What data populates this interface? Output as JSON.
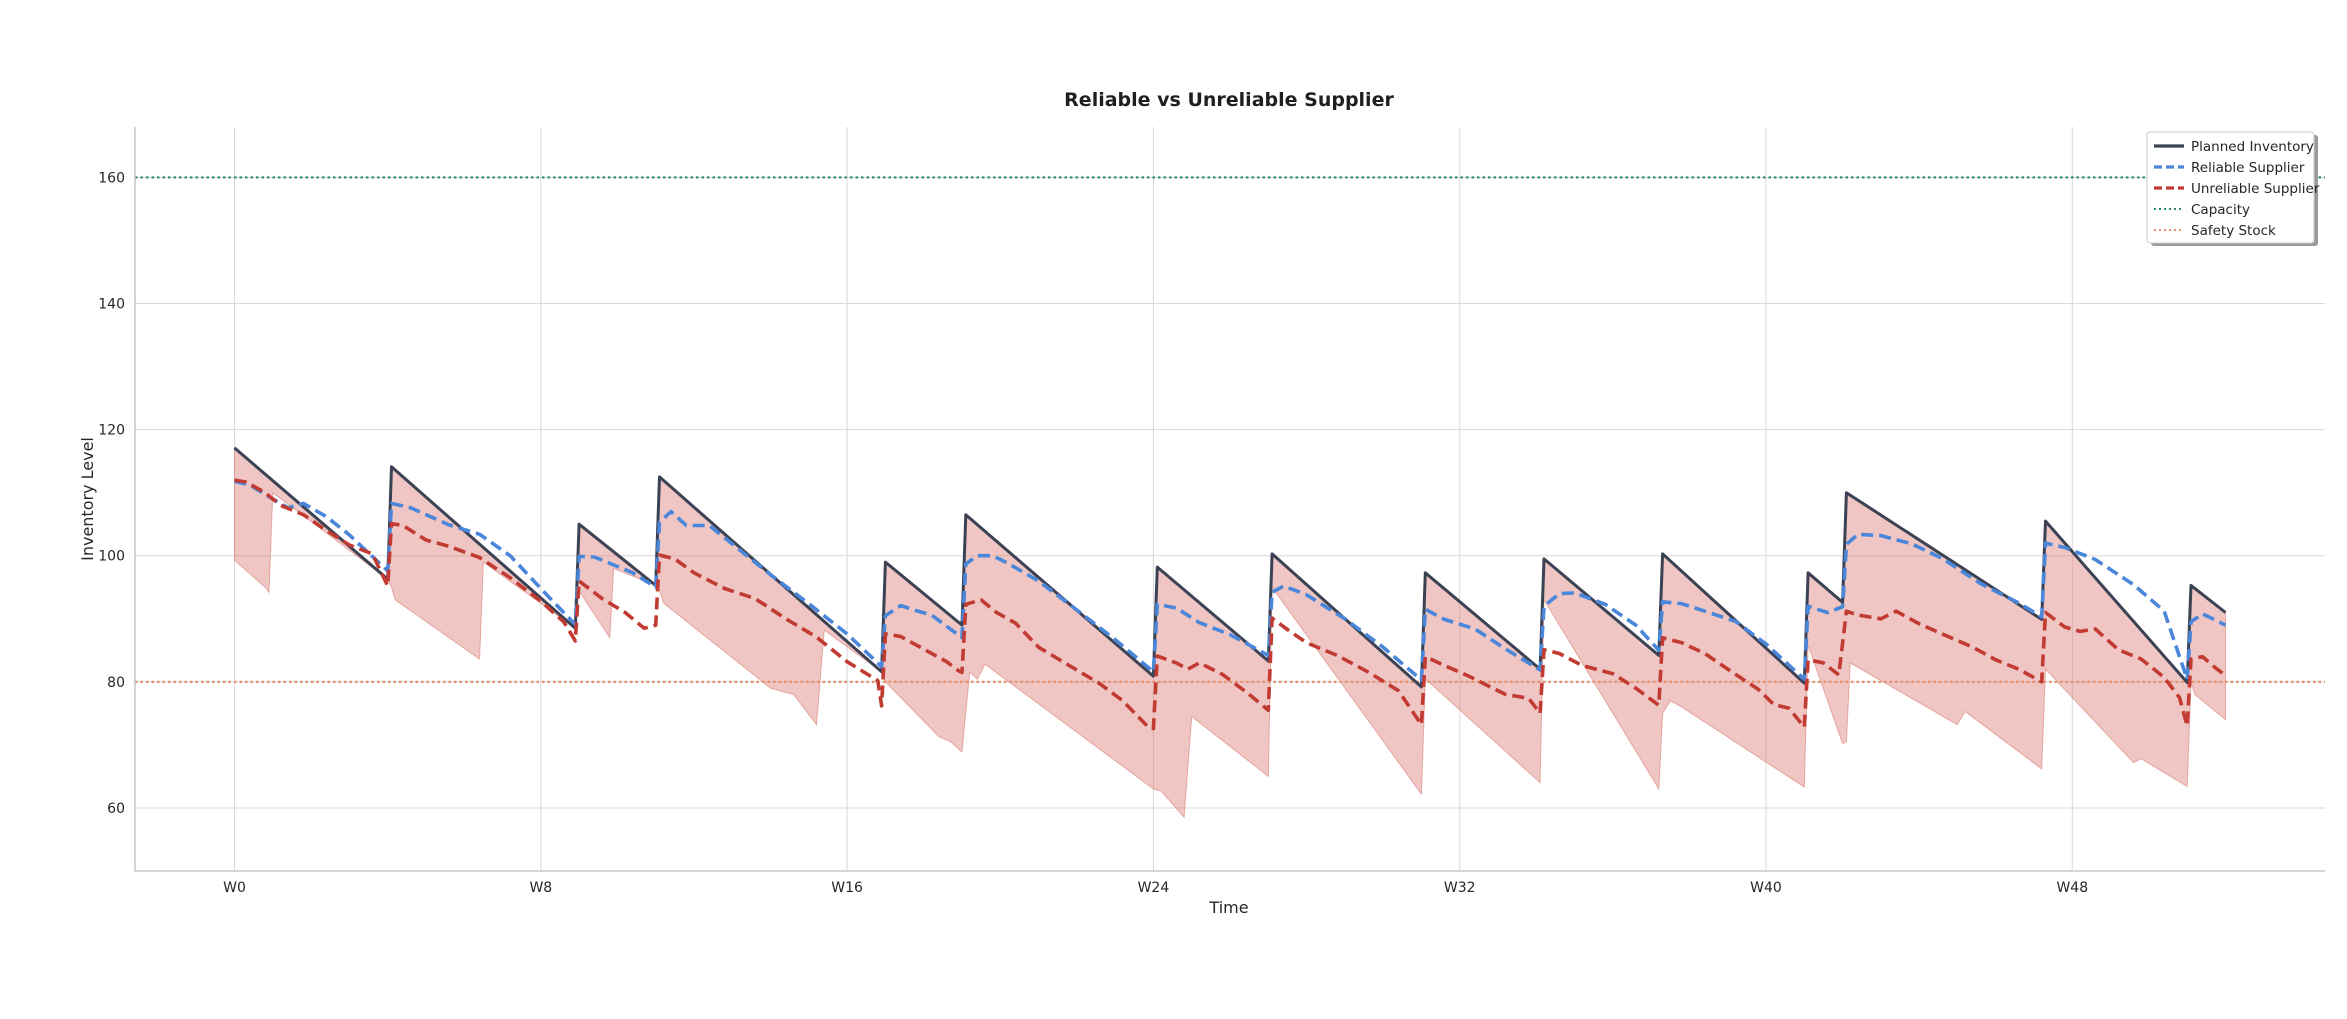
{
  "chart_data": {
    "type": "line",
    "title": "Reliable vs Unreliable Supplier",
    "xlabel": "Time",
    "ylabel": "Inventory Level",
    "xlim": [
      -1.3,
      27.3
    ],
    "ylim": [
      50,
      168
    ],
    "x_ticks": [
      {
        "x": 0,
        "label": "W0"
      },
      {
        "x": 4,
        "label": "W8"
      },
      {
        "x": 8,
        "label": "W16"
      },
      {
        "x": 12,
        "label": "W24"
      },
      {
        "x": 16,
        "label": "W32"
      },
      {
        "x": 20,
        "label": "W40"
      },
      {
        "x": 24,
        "label": "W48"
      }
    ],
    "y_ticks": [
      60,
      80,
      100,
      120,
      140,
      160
    ],
    "grid": true,
    "legend_position": "top-right",
    "reference_lines": [
      {
        "name": "Capacity",
        "value": 160,
        "color": "#2e8b6e",
        "style": "dotted"
      },
      {
        "name": "Safety Stock",
        "value": 80,
        "color": "#e8906a",
        "style": "dotted"
      }
    ],
    "series": [
      {
        "name": "Planned Inventory",
        "color": "#3b4254",
        "style": "solid",
        "points": [
          [
            0,
            117.1
          ],
          [
            2,
            96.3
          ],
          [
            2.05,
            114.1
          ],
          [
            4.45,
            88.5
          ],
          [
            4.5,
            105.0
          ],
          [
            5.5,
            95.3
          ],
          [
            5.55,
            112.5
          ],
          [
            8.45,
            81.6
          ],
          [
            8.5,
            99.0
          ],
          [
            9.5,
            89.0
          ],
          [
            9.55,
            106.5
          ],
          [
            12,
            80.9
          ],
          [
            12.05,
            98.2
          ],
          [
            13.5,
            83.3
          ],
          [
            13.55,
            100.3
          ],
          [
            15.5,
            79.2
          ],
          [
            15.55,
            97.3
          ],
          [
            17.05,
            82.0
          ],
          [
            17.1,
            99.5
          ],
          [
            18.6,
            84.2
          ],
          [
            18.65,
            100.3
          ],
          [
            20.5,
            79.8
          ],
          [
            20.55,
            97.3
          ],
          [
            21,
            92.6
          ],
          [
            21.05,
            110.0
          ],
          [
            23.6,
            89.9
          ],
          [
            23.65,
            105.5
          ],
          [
            25.5,
            79.9
          ],
          [
            25.55,
            95.3
          ],
          [
            26,
            91.0
          ]
        ]
      },
      {
        "name": "Reliable Supplier",
        "color": "#4a86d9",
        "style": "dashed",
        "points": [
          [
            0,
            111.8
          ],
          [
            0.2,
            111.2
          ],
          [
            0.5,
            109.0
          ],
          [
            0.7,
            107.6
          ],
          [
            0.9,
            108.3
          ],
          [
            1.2,
            106.2
          ],
          [
            1.5,
            103.3
          ],
          [
            2,
            97.6
          ],
          [
            2.05,
            108.3
          ],
          [
            2.3,
            107.6
          ],
          [
            2.8,
            104.9
          ],
          [
            3.2,
            103.4
          ],
          [
            3.6,
            100.0
          ],
          [
            4.1,
            93.5
          ],
          [
            4.45,
            89.1
          ],
          [
            4.5,
            99.9
          ],
          [
            4.7,
            99.8
          ],
          [
            5.2,
            97.3
          ],
          [
            5.5,
            95.0
          ],
          [
            5.55,
            105.3
          ],
          [
            5.7,
            107.0
          ],
          [
            5.9,
            104.8
          ],
          [
            6.2,
            104.8
          ],
          [
            6.6,
            100.9
          ],
          [
            7,
            97.0
          ],
          [
            7.5,
            92.4
          ],
          [
            8,
            87.6
          ],
          [
            8.45,
            82.4
          ],
          [
            8.5,
            90.5
          ],
          [
            8.7,
            92.1
          ],
          [
            8.9,
            91.3
          ],
          [
            9.1,
            90.6
          ],
          [
            9.5,
            87.0
          ],
          [
            9.55,
            98.7
          ],
          [
            9.7,
            100.0
          ],
          [
            9.9,
            100.0
          ],
          [
            10.1,
            98.8
          ],
          [
            10.5,
            96.0
          ],
          [
            11,
            91.4
          ],
          [
            11.5,
            86.7
          ],
          [
            12,
            81.6
          ],
          [
            12.05,
            92.3
          ],
          [
            12.3,
            91.7
          ],
          [
            12.6,
            89.4
          ],
          [
            13,
            87.5
          ],
          [
            13.5,
            84.2
          ],
          [
            13.55,
            94.2
          ],
          [
            13.7,
            95.2
          ],
          [
            14,
            93.8
          ],
          [
            14.5,
            90.0
          ],
          [
            15,
            85.5
          ],
          [
            15.5,
            80.3
          ],
          [
            15.55,
            91.5
          ],
          [
            15.8,
            89.9
          ],
          [
            16.2,
            88.4
          ],
          [
            16.6,
            85.2
          ],
          [
            17.05,
            81.9
          ],
          [
            17.1,
            92.0
          ],
          [
            17.3,
            94.0
          ],
          [
            17.5,
            94.1
          ],
          [
            17.9,
            92.3
          ],
          [
            18.3,
            89.0
          ],
          [
            18.6,
            85.0
          ],
          [
            18.65,
            92.7
          ],
          [
            18.9,
            92.4
          ],
          [
            19.2,
            91.2
          ],
          [
            19.6,
            89.6
          ],
          [
            20,
            86.0
          ],
          [
            20.5,
            80.4
          ],
          [
            20.55,
            92.0
          ],
          [
            20.8,
            91.0
          ],
          [
            21,
            91.9
          ],
          [
            21.05,
            101.8
          ],
          [
            21.2,
            103.4
          ],
          [
            21.5,
            103.2
          ],
          [
            21.9,
            101.9
          ],
          [
            22.3,
            99.6
          ],
          [
            22.8,
            95.6
          ],
          [
            23.3,
            92.5
          ],
          [
            23.6,
            90.3
          ],
          [
            23.65,
            102.0
          ],
          [
            23.9,
            101.3
          ],
          [
            24.3,
            99.4
          ],
          [
            24.8,
            95.4
          ],
          [
            25.2,
            91.2
          ],
          [
            25.5,
            80.4
          ],
          [
            25.55,
            89.5
          ],
          [
            25.7,
            90.8
          ],
          [
            26,
            89.0
          ]
        ]
      },
      {
        "name": "Unreliable Supplier",
        "color": "#c23b33",
        "style": "dashed",
        "points": [
          [
            0,
            112.0
          ],
          [
            0.15,
            111.7
          ],
          [
            0.4,
            110.0
          ],
          [
            0.6,
            108.0
          ],
          [
            0.9,
            106.5
          ],
          [
            1.2,
            104.0
          ],
          [
            1.5,
            101.7
          ],
          [
            1.8,
            100.3
          ],
          [
            2,
            95.2
          ],
          [
            2.05,
            105.1
          ],
          [
            2.2,
            104.8
          ],
          [
            2.5,
            102.5
          ],
          [
            2.8,
            101.5
          ],
          [
            3.2,
            99.7
          ],
          [
            3.6,
            96.5
          ],
          [
            4,
            92.8
          ],
          [
            4.3,
            89.5
          ],
          [
            4.45,
            86.5
          ],
          [
            4.5,
            96.0
          ],
          [
            4.8,
            93.2
          ],
          [
            5.1,
            91.0
          ],
          [
            5.35,
            88.5
          ],
          [
            5.5,
            89.0
          ],
          [
            5.55,
            100.1
          ],
          [
            5.75,
            99.5
          ],
          [
            6,
            97.3
          ],
          [
            6.4,
            94.8
          ],
          [
            6.8,
            93.2
          ],
          [
            7.2,
            90.0
          ],
          [
            7.6,
            87.1
          ],
          [
            8,
            83.2
          ],
          [
            8.4,
            80.2
          ],
          [
            8.45,
            76.2
          ],
          [
            8.5,
            87.6
          ],
          [
            8.7,
            87.2
          ],
          [
            9,
            85.2
          ],
          [
            9.3,
            83.2
          ],
          [
            9.45,
            81.8
          ],
          [
            9.5,
            81.5
          ],
          [
            9.55,
            92.3
          ],
          [
            9.75,
            93.0
          ],
          [
            9.95,
            91.0
          ],
          [
            10.2,
            89.3
          ],
          [
            10.5,
            85.5
          ],
          [
            10.9,
            82.6
          ],
          [
            11.3,
            79.7
          ],
          [
            11.6,
            77.0
          ],
          [
            11.95,
            72.6
          ],
          [
            12,
            72.6
          ],
          [
            12.05,
            84.1
          ],
          [
            12.3,
            83.0
          ],
          [
            12.45,
            82.0
          ],
          [
            12.6,
            83.0
          ],
          [
            12.9,
            81.2
          ],
          [
            13.2,
            78.5
          ],
          [
            13.5,
            75.5
          ],
          [
            13.55,
            90.1
          ],
          [
            13.75,
            88.3
          ],
          [
            14,
            86.2
          ],
          [
            14.4,
            84.2
          ],
          [
            14.8,
            81.6
          ],
          [
            15.2,
            78.6
          ],
          [
            15.5,
            73.2
          ],
          [
            15.55,
            84.0
          ],
          [
            15.8,
            82.6
          ],
          [
            16.1,
            81.0
          ],
          [
            16.4,
            79.2
          ],
          [
            16.6,
            78.0
          ],
          [
            16.9,
            77.4
          ],
          [
            17.05,
            75.0
          ],
          [
            17.1,
            85.1
          ],
          [
            17.3,
            84.5
          ],
          [
            17.6,
            82.6
          ],
          [
            18,
            81.3
          ],
          [
            18.3,
            79.0
          ],
          [
            18.6,
            76.3
          ],
          [
            18.65,
            87.0
          ],
          [
            18.9,
            86.2
          ],
          [
            19.2,
            84.5
          ],
          [
            19.6,
            81.2
          ],
          [
            19.9,
            78.8
          ],
          [
            20.1,
            76.4
          ],
          [
            20.3,
            75.8
          ],
          [
            20.5,
            72.8
          ],
          [
            20.55,
            83.5
          ],
          [
            20.75,
            83.0
          ],
          [
            20.95,
            81.1
          ],
          [
            21.05,
            91.2
          ],
          [
            21.2,
            90.6
          ],
          [
            21.5,
            90.0
          ],
          [
            21.7,
            91.2
          ],
          [
            22,
            89.2
          ],
          [
            22.3,
            87.6
          ],
          [
            22.7,
            85.5
          ],
          [
            23,
            83.5
          ],
          [
            23.3,
            82.0
          ],
          [
            23.6,
            80.0
          ],
          [
            23.65,
            91.0
          ],
          [
            23.9,
            88.7
          ],
          [
            24.1,
            88.0
          ],
          [
            24.3,
            88.4
          ],
          [
            24.6,
            85.1
          ],
          [
            24.9,
            83.6
          ],
          [
            25.2,
            80.7
          ],
          [
            25.4,
            77.5
          ],
          [
            25.5,
            73.0
          ],
          [
            25.55,
            83.6
          ],
          [
            25.7,
            84.0
          ],
          [
            25.85,
            82.4
          ],
          [
            26,
            81.0
          ]
        ]
      }
    ],
    "band": {
      "color": "#d97770",
      "upper_series": "Planned Inventory",
      "lower": [
        [
          0,
          99.3
        ],
        [
          0.4,
          95.0
        ],
        [
          0.45,
          94.2
        ],
        [
          0.5,
          110.0
        ],
        [
          2,
          96.3
        ],
        [
          2.05,
          95.0
        ],
        [
          2.1,
          93.0
        ],
        [
          3.2,
          83.6
        ],
        [
          3.25,
          99.0
        ],
        [
          4.45,
          88.5
        ],
        [
          4.5,
          94.4
        ],
        [
          4.9,
          87.0
        ],
        [
          4.95,
          98.0
        ],
        [
          5.5,
          95.3
        ],
        [
          5.55,
          94.6
        ],
        [
          5.6,
          92.5
        ],
        [
          7,
          79.0
        ],
        [
          7.3,
          78.0
        ],
        [
          7.6,
          73.2
        ],
        [
          7.7,
          88.2
        ],
        [
          8.45,
          81.6
        ],
        [
          8.5,
          80.0
        ],
        [
          9.2,
          71.3
        ],
        [
          9.35,
          70.5
        ],
        [
          9.5,
          68.9
        ],
        [
          9.6,
          81.6
        ],
        [
          9.7,
          80.4
        ],
        [
          9.8,
          82.8
        ],
        [
          12,
          63.0
        ],
        [
          12.1,
          62.7
        ],
        [
          12.4,
          58.5
        ],
        [
          12.5,
          74.5
        ],
        [
          13.5,
          65.0
        ],
        [
          13.55,
          95.0
        ],
        [
          15.5,
          62.2
        ],
        [
          15.55,
          80.5
        ],
        [
          17.05,
          64.0
        ],
        [
          17.1,
          93.0
        ],
        [
          18.6,
          63.0
        ],
        [
          18.65,
          75.0
        ],
        [
          18.75,
          77.0
        ],
        [
          18.9,
          76.0
        ],
        [
          20.5,
          63.3
        ],
        [
          20.55,
          85.8
        ],
        [
          21,
          70.2
        ],
        [
          21.05,
          70.5
        ],
        [
          21.1,
          83.0
        ],
        [
          22.5,
          73.2
        ],
        [
          22.6,
          75.3
        ],
        [
          23.6,
          66.2
        ],
        [
          23.65,
          82.0
        ],
        [
          24.8,
          67.2
        ],
        [
          24.9,
          67.8
        ],
        [
          25.5,
          63.4
        ],
        [
          25.55,
          80.0
        ],
        [
          25.6,
          78.0
        ],
        [
          26,
          74.0
        ]
      ]
    }
  },
  "legend": {
    "items": [
      {
        "label": "Planned Inventory",
        "color": "#3b4254",
        "style": "solid"
      },
      {
        "label": "Reliable Supplier",
        "color": "#4a86d9",
        "style": "dashed"
      },
      {
        "label": "Unreliable Supplier",
        "color": "#c23b33",
        "style": "dashed"
      },
      {
        "label": "Capacity",
        "color": "#2e8b6e",
        "style": "dotted"
      },
      {
        "label": "Safety Stock",
        "color": "#e8906a",
        "style": "dotted"
      }
    ]
  }
}
